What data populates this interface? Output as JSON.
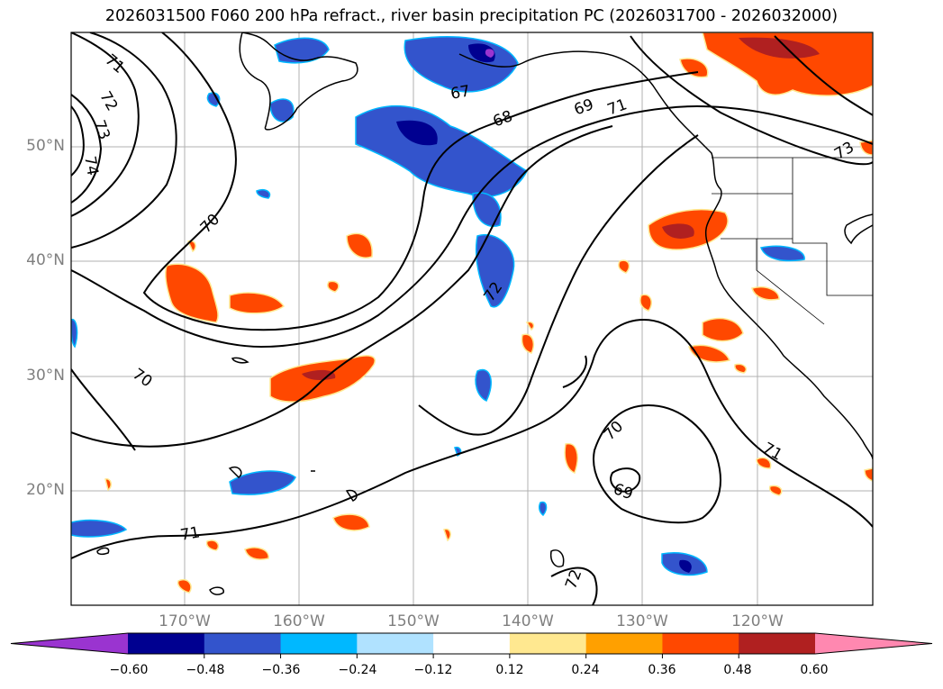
{
  "title": "2026031500 F060 200 hPa refract., river basin precipitation PC (2026031700 - 2026032000)",
  "map": {
    "lat_labels": [
      "50°N",
      "40°N",
      "30°N",
      "20°N"
    ],
    "lon_labels": [
      "170°W",
      "160°W",
      "150°W",
      "140°W",
      "130°W",
      "120°W"
    ],
    "contour_labels": [
      "71",
      "72",
      "73",
      "74",
      "67",
      "68",
      "69",
      "71",
      "73",
      "70",
      "70",
      "72",
      "70",
      "71",
      "69",
      "71",
      "72"
    ],
    "colors": {
      "frame": "#000000",
      "grid": "#b0b0b0",
      "coast": "#000000",
      "contour": "#000000"
    }
  },
  "colorbar": {
    "ticks": [
      "−0.60",
      "−0.48",
      "−0.36",
      "−0.24",
      "−0.12",
      "0.12",
      "0.24",
      "0.36",
      "0.48",
      "0.60"
    ],
    "colors": [
      "#9a34d0",
      "#000090",
      "#3354cc",
      "#00b8ff",
      "#b0e2ff",
      "#ffffff",
      "#ffe890",
      "#ffa000",
      "#ff4800",
      "#b02020",
      "#ff88b0"
    ]
  }
}
